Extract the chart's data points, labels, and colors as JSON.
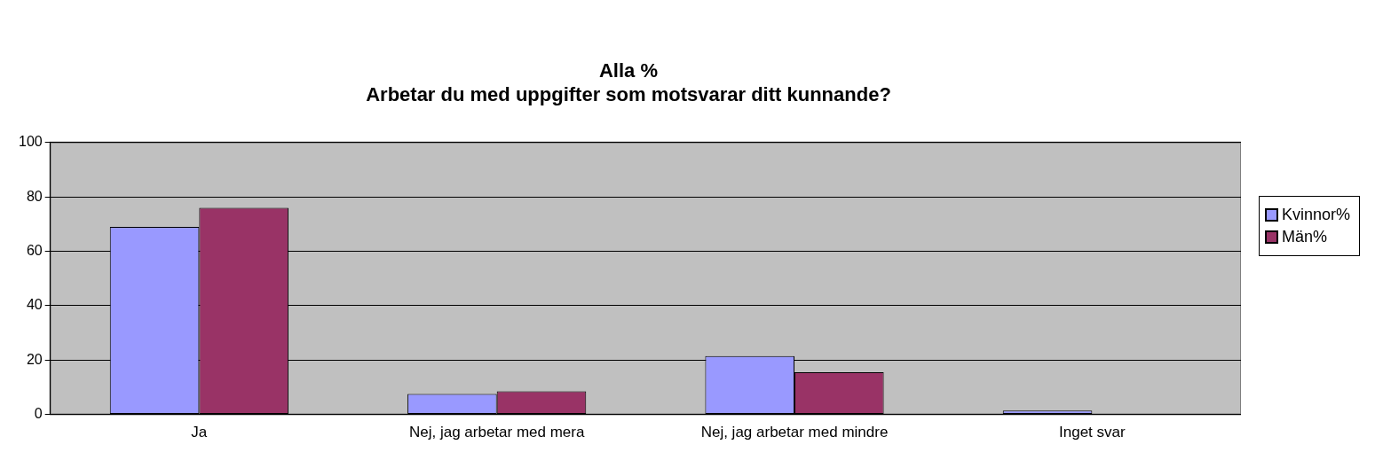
{
  "chart_data": {
    "type": "bar",
    "title": [
      "Alla %",
      "Arbetar du med uppgifter som motsvarar ditt kunnande?"
    ],
    "categories": [
      "Ja",
      "Nej, jag arbetar med mera",
      "Nej, jag arbetar med mindre",
      "Inget svar"
    ],
    "series": [
      {
        "name": "Kvinnor%",
        "color": "#9999ff",
        "values": [
          69,
          7.5,
          21.5,
          1.4
        ]
      },
      {
        "name": "Män%",
        "color": "#993366",
        "values": [
          76,
          8.5,
          15.5,
          0
        ]
      }
    ],
    "ylim": [
      0,
      100
    ],
    "yticks": [
      0,
      20,
      40,
      60,
      80,
      100
    ],
    "grid": "y",
    "legend": "right"
  }
}
